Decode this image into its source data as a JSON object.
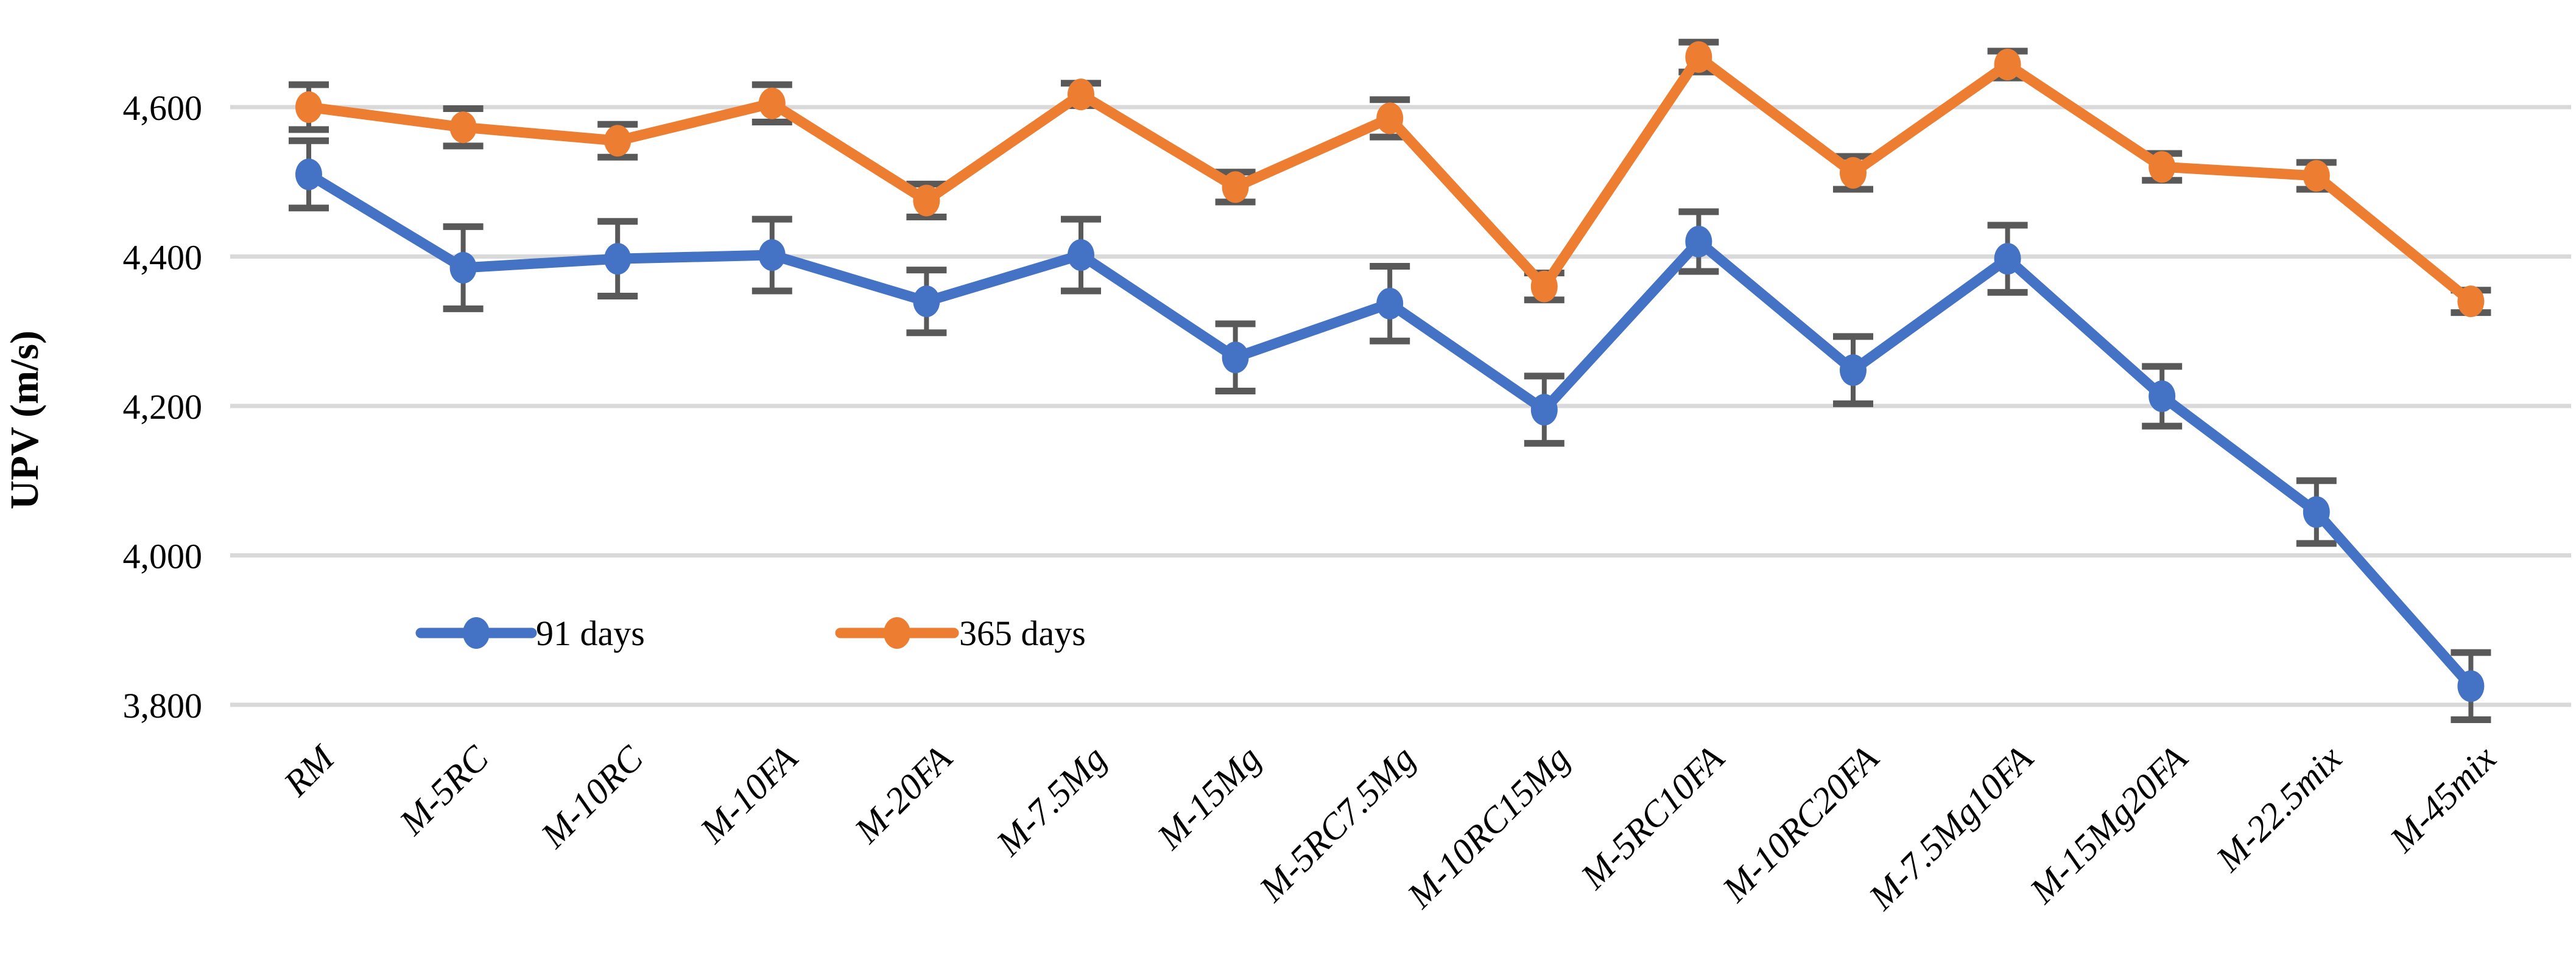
{
  "chart_data": {
    "type": "line",
    "title": "",
    "xlabel": "",
    "ylabel": "UPV (m/s)",
    "grid": true,
    "legend_position": "inside-bottom-left",
    "ylim": [
      3800,
      4600
    ],
    "y_ticks": [
      {
        "label": "4,600",
        "value": 4600
      },
      {
        "label": "4,400",
        "value": 4400
      },
      {
        "label": "4,200",
        "value": 4200
      },
      {
        "label": "4,000",
        "value": 4000
      },
      {
        "label": "3,800",
        "value": 3800
      }
    ],
    "categories": [
      "RM",
      "M-5RC",
      "M-10RC",
      "M-10FA",
      "M-20FA",
      "M-7.5Mg",
      "M-15Mg",
      "M-5RC7.5Mg",
      "M-10RC15Mg",
      "M-5RC10FA",
      "M-10RC20FA",
      "M-7.5Mg10FA",
      "M-15Mg20FA",
      "M-22.5mix",
      "M-45mix"
    ],
    "series": [
      {
        "name": "91 days",
        "color": "#4472C4",
        "values": [
          4510,
          4385,
          4397,
          4402,
          4340,
          4402,
          4265,
          4337,
          4195,
          4420,
          4248,
          4397,
          4213,
          4058,
          3825
        ],
        "errors": [
          45,
          55,
          50,
          48,
          42,
          48,
          45,
          50,
          45,
          40,
          45,
          45,
          40,
          42,
          45
        ]
      },
      {
        "name": "365 days",
        "color": "#ED7D31",
        "values": [
          4600,
          4573,
          4555,
          4605,
          4475,
          4617,
          4493,
          4585,
          4360,
          4667,
          4512,
          4657,
          4520,
          4508,
          4340
        ],
        "errors": [
          30,
          25,
          22,
          25,
          22,
          15,
          20,
          25,
          18,
          20,
          22,
          18,
          18,
          18,
          15
        ]
      }
    ],
    "error_bar_color": "#595959",
    "gridline_color": "#D9D9D9",
    "text_color": "#000000",
    "background": "#FFFFFF"
  },
  "legend": {
    "items": [
      {
        "label": "91 days",
        "color": "#4472C4"
      },
      {
        "label": "365 days",
        "color": "#ED7D31"
      }
    ]
  },
  "axis": {
    "y_title": "UPV (m/s)"
  }
}
